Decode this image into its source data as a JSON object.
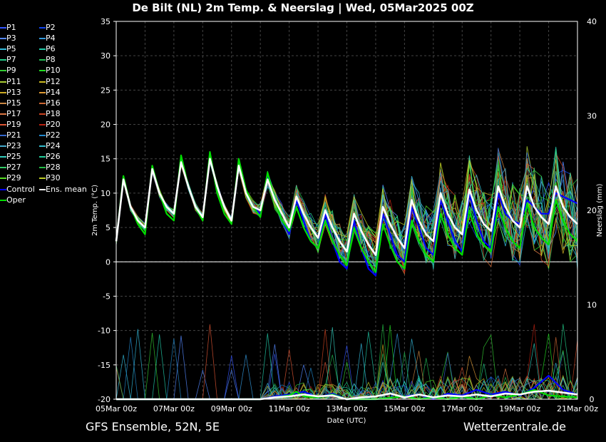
{
  "title": "De Bilt  (NL)  2m Temp. & Neerslag | Wed, 05Mar2025 00Z",
  "footer": {
    "left": "GFS Ensemble, 52N, 5E",
    "right": "Wetterzentrale.de"
  },
  "legend": [
    {
      "label": "P1",
      "color": "#3355ff"
    },
    {
      "label": "P2",
      "color": "#1144ee"
    },
    {
      "label": "P3",
      "color": "#5588ff"
    },
    {
      "label": "P4",
      "color": "#3399dd"
    },
    {
      "label": "P5",
      "color": "#33bbdd"
    },
    {
      "label": "P6",
      "color": "#22ccaa"
    },
    {
      "label": "P7",
      "color": "#22cc88"
    },
    {
      "label": "P8",
      "color": "#22bb55"
    },
    {
      "label": "P9",
      "color": "#33cc33"
    },
    {
      "label": "P10",
      "color": "#22dd22"
    },
    {
      "label": "P11",
      "color": "#aacc33"
    },
    {
      "label": "P12",
      "color": "#ccbb22"
    },
    {
      "label": "P13",
      "color": "#ccaa22"
    },
    {
      "label": "P14",
      "color": "#dd9933"
    },
    {
      "label": "P15",
      "color": "#cc8844"
    },
    {
      "label": "P16",
      "color": "#cc6633"
    },
    {
      "label": "P17",
      "color": "#dd7744"
    },
    {
      "label": "P18",
      "color": "#cc4422"
    },
    {
      "label": "P19",
      "color": "#dd5533"
    },
    {
      "label": "P20",
      "color": "#bb2211"
    },
    {
      "label": "P21",
      "color": "#3366cc"
    },
    {
      "label": "P22",
      "color": "#2288cc"
    },
    {
      "label": "P23",
      "color": "#44aacc"
    },
    {
      "label": "P24",
      "color": "#33bbcc"
    },
    {
      "label": "P25",
      "color": "#33ccbb"
    },
    {
      "label": "P26",
      "color": "#22cc99"
    },
    {
      "label": "P27",
      "color": "#33cc66"
    },
    {
      "label": "P28",
      "color": "#22bb44"
    },
    {
      "label": "P29",
      "color": "#55dd22"
    },
    {
      "label": "P30",
      "color": "#bbcc22"
    },
    {
      "label": "Control",
      "color": "#0000ff"
    },
    {
      "label": "Ens. mean",
      "color": "#ffffff"
    },
    {
      "label": "Oper",
      "color": "#00dd00"
    }
  ],
  "chart_data": {
    "type": "line",
    "x_labels": [
      "05Mar 00z",
      "07Mar 00z",
      "09Mar 00z",
      "11Mar 00z",
      "13Mar 00z",
      "15Mar 00z",
      "17Mar 00z",
      "19Mar 00z",
      "21Mar 00z"
    ],
    "x_range_days": [
      0,
      16
    ],
    "y_left": {
      "label": "2m Temp. (°C)",
      "min": -20,
      "max": 35,
      "ticks": [
        35,
        30,
        25,
        20,
        15,
        10,
        5,
        0,
        -5,
        -10,
        -15,
        -20
      ]
    },
    "y_right": {
      "label": "Neerslag (mm)",
      "min": 0,
      "max": 40,
      "ticks": [
        40,
        30,
        20,
        10,
        0
      ]
    },
    "xlabel": "Date (UTC)",
    "grid": true,
    "series": [
      {
        "name": "Ens. mean",
        "type": "temp",
        "color": "#ffffff",
        "values": [
          [
            0,
            3
          ],
          [
            0.25,
            12
          ],
          [
            0.5,
            8
          ],
          [
            0.75,
            6
          ],
          [
            1,
            5
          ],
          [
            1.25,
            13.5
          ],
          [
            1.5,
            10
          ],
          [
            1.75,
            8
          ],
          [
            2,
            7
          ],
          [
            2.25,
            14.5
          ],
          [
            2.5,
            11
          ],
          [
            2.75,
            8
          ],
          [
            3,
            6.5
          ],
          [
            3.25,
            15
          ],
          [
            3.5,
            11
          ],
          [
            3.75,
            8
          ],
          [
            4,
            6
          ],
          [
            4.25,
            14
          ],
          [
            4.5,
            10
          ],
          [
            4.75,
            8
          ],
          [
            5,
            7.5
          ],
          [
            5.25,
            12
          ],
          [
            5.5,
            9
          ],
          [
            5.75,
            7
          ],
          [
            6,
            5
          ],
          [
            6.25,
            9.5
          ],
          [
            6.5,
            7
          ],
          [
            6.75,
            5
          ],
          [
            7,
            3.5
          ],
          [
            7.25,
            7.5
          ],
          [
            7.5,
            5
          ],
          [
            7.75,
            3
          ],
          [
            8,
            1.5
          ],
          [
            8.25,
            7
          ],
          [
            8.5,
            4.5
          ],
          [
            8.75,
            2.5
          ],
          [
            9,
            1
          ],
          [
            9.25,
            8
          ],
          [
            9.5,
            5.5
          ],
          [
            9.75,
            3.5
          ],
          [
            10,
            2
          ],
          [
            10.25,
            9
          ],
          [
            10.5,
            6
          ],
          [
            10.75,
            4
          ],
          [
            11,
            3
          ],
          [
            11.25,
            10
          ],
          [
            11.5,
            7
          ],
          [
            11.75,
            5
          ],
          [
            12,
            4
          ],
          [
            12.25,
            10.5
          ],
          [
            12.5,
            7.5
          ],
          [
            12.75,
            5.5
          ],
          [
            13,
            4.5
          ],
          [
            13.25,
            11
          ],
          [
            13.5,
            8
          ],
          [
            13.75,
            6
          ],
          [
            14,
            5
          ],
          [
            14.25,
            11
          ],
          [
            14.5,
            8
          ],
          [
            14.75,
            6.5
          ],
          [
            15,
            5.5
          ],
          [
            15.25,
            11
          ],
          [
            15.5,
            8
          ],
          [
            15.75,
            6.5
          ],
          [
            16,
            5.5
          ]
        ]
      },
      {
        "name": "Oper",
        "type": "temp",
        "color": "#00dd00",
        "values": [
          [
            0,
            3
          ],
          [
            0.25,
            12.5
          ],
          [
            0.5,
            8
          ],
          [
            0.75,
            5.5
          ],
          [
            1,
            4
          ],
          [
            1.25,
            14
          ],
          [
            1.5,
            10
          ],
          [
            1.75,
            7
          ],
          [
            2,
            6
          ],
          [
            2.25,
            15.5
          ],
          [
            2.5,
            11
          ],
          [
            2.75,
            8
          ],
          [
            3,
            6
          ],
          [
            3.25,
            16
          ],
          [
            3.5,
            10
          ],
          [
            3.75,
            7
          ],
          [
            4,
            5.5
          ],
          [
            4.25,
            15
          ],
          [
            4.5,
            10.5
          ],
          [
            4.75,
            8
          ],
          [
            5,
            6.5
          ],
          [
            5.25,
            13
          ],
          [
            5.5,
            9
          ],
          [
            5.75,
            6
          ],
          [
            6,
            4.5
          ],
          [
            6.25,
            8
          ],
          [
            6.5,
            5
          ],
          [
            6.75,
            3
          ],
          [
            7,
            2
          ],
          [
            7.25,
            6
          ],
          [
            7.5,
            3
          ],
          [
            7.75,
            1
          ],
          [
            8,
            -0.5
          ],
          [
            8.25,
            5
          ],
          [
            8.5,
            2
          ],
          [
            8.75,
            0
          ],
          [
            9,
            -1.5
          ],
          [
            9.25,
            5.5
          ],
          [
            9.5,
            2.5
          ],
          [
            9.75,
            0
          ],
          [
            10,
            -1
          ],
          [
            10.25,
            6
          ],
          [
            10.5,
            3
          ],
          [
            10.75,
            1
          ],
          [
            11,
            0
          ],
          [
            11.25,
            7
          ],
          [
            11.5,
            4
          ],
          [
            11.75,
            2
          ],
          [
            12,
            1
          ],
          [
            12.25,
            7.5
          ],
          [
            12.5,
            4
          ],
          [
            12.75,
            2.5
          ],
          [
            13,
            1.5
          ],
          [
            13.25,
            8
          ],
          [
            13.5,
            5
          ],
          [
            13.75,
            3
          ],
          [
            14,
            2
          ],
          [
            14.25,
            8.5
          ],
          [
            14.5,
            5
          ],
          [
            14.75,
            3.5
          ],
          [
            15,
            2.5
          ],
          [
            15.25,
            9
          ],
          [
            15.5,
            6
          ],
          [
            15.75,
            4
          ],
          [
            16,
            3
          ]
        ]
      },
      {
        "name": "Control",
        "type": "temp",
        "color": "#0000ff",
        "values": [
          [
            0,
            3
          ],
          [
            0.25,
            12
          ],
          [
            0.5,
            8
          ],
          [
            0.75,
            6
          ],
          [
            1,
            5
          ],
          [
            1.25,
            13.5
          ],
          [
            1.5,
            10
          ],
          [
            1.75,
            8
          ],
          [
            2,
            7
          ],
          [
            2.25,
            14.5
          ],
          [
            2.5,
            11
          ],
          [
            2.75,
            8
          ],
          [
            3,
            6.5
          ],
          [
            3.25,
            15
          ],
          [
            3.5,
            11
          ],
          [
            3.75,
            8
          ],
          [
            4,
            6
          ],
          [
            4.25,
            14
          ],
          [
            4.5,
            10
          ],
          [
            4.75,
            8
          ],
          [
            5,
            7
          ],
          [
            5.25,
            12.5
          ],
          [
            5.5,
            9
          ],
          [
            5.75,
            6
          ],
          [
            6,
            4
          ],
          [
            6.25,
            9
          ],
          [
            6.5,
            6
          ],
          [
            6.75,
            3
          ],
          [
            7,
            2
          ],
          [
            7.25,
            7
          ],
          [
            7.5,
            3
          ],
          [
            7.75,
            0
          ],
          [
            8,
            -1
          ],
          [
            8.25,
            6
          ],
          [
            8.5,
            2
          ],
          [
            8.75,
            -1
          ],
          [
            9,
            -2
          ],
          [
            9.25,
            7
          ],
          [
            9.5,
            4
          ],
          [
            9.75,
            1
          ],
          [
            10,
            0
          ],
          [
            10.25,
            8
          ],
          [
            10.5,
            5
          ],
          [
            10.75,
            2
          ],
          [
            11,
            1
          ],
          [
            11.25,
            9
          ],
          [
            11.5,
            6
          ],
          [
            11.75,
            3
          ],
          [
            12,
            1.5
          ],
          [
            12.25,
            10
          ],
          [
            12.5,
            6
          ],
          [
            12.75,
            3
          ],
          [
            13,
            2
          ],
          [
            13.25,
            10
          ],
          [
            13.5,
            7
          ],
          [
            13.75,
            6
          ],
          [
            14,
            5.5
          ],
          [
            14.25,
            9
          ],
          [
            14.5,
            8
          ],
          [
            14.75,
            7
          ],
          [
            15,
            7
          ],
          [
            15.25,
            10
          ],
          [
            15.5,
            9.5
          ],
          [
            15.75,
            9
          ],
          [
            16,
            8.5
          ]
        ]
      },
      {
        "name": "Oper",
        "type": "precip",
        "color": "#00dd00",
        "values": [
          [
            0,
            0
          ],
          [
            3,
            0
          ],
          [
            4,
            0
          ],
          [
            5,
            0
          ],
          [
            5.5,
            0.2
          ],
          [
            6,
            0.4
          ],
          [
            6.25,
            0.8
          ],
          [
            6.5,
            0.3
          ],
          [
            7,
            0.2
          ],
          [
            7.5,
            0.5
          ],
          [
            8,
            0
          ],
          [
            9,
            0
          ],
          [
            10,
            0.3
          ],
          [
            10.5,
            0
          ],
          [
            11,
            0.2
          ],
          [
            11.5,
            0
          ],
          [
            12,
            0.3
          ],
          [
            12.5,
            0
          ],
          [
            13,
            0.4
          ],
          [
            13.5,
            0.2
          ],
          [
            14,
            0.5
          ],
          [
            14.5,
            1.0
          ],
          [
            15,
            0.4
          ],
          [
            15.5,
            0.3
          ],
          [
            16,
            0.2
          ]
        ]
      },
      {
        "name": "Ens. mean",
        "type": "precip",
        "color": "#ffffff",
        "values": [
          [
            0,
            0
          ],
          [
            5,
            0
          ],
          [
            5.5,
            0.2
          ],
          [
            6,
            0.3
          ],
          [
            6.5,
            0.5
          ],
          [
            7,
            0.3
          ],
          [
            7.5,
            0.4
          ],
          [
            8,
            0
          ],
          [
            8.5,
            0.2
          ],
          [
            9,
            0.3
          ],
          [
            9.5,
            0.6
          ],
          [
            10,
            0.2
          ],
          [
            10.5,
            0.5
          ],
          [
            11,
            0.2
          ],
          [
            11.5,
            0.4
          ],
          [
            12,
            0.3
          ],
          [
            12.5,
            0.5
          ],
          [
            13,
            0.3
          ],
          [
            13.5,
            0.6
          ],
          [
            14,
            0.5
          ],
          [
            14.5,
            0.8
          ],
          [
            15,
            0.9
          ],
          [
            15.5,
            0.7
          ],
          [
            16,
            0.5
          ]
        ]
      },
      {
        "name": "Control",
        "type": "precip",
        "color": "#0000ff",
        "values": [
          [
            0,
            0
          ],
          [
            5,
            0
          ],
          [
            5.5,
            0.3
          ],
          [
            6,
            0.5
          ],
          [
            6.5,
            0.8
          ],
          [
            7,
            0.2
          ],
          [
            7.5,
            0.6
          ],
          [
            8,
            0
          ],
          [
            9,
            0
          ],
          [
            10,
            0.3
          ],
          [
            10.5,
            0.5
          ],
          [
            11,
            0
          ],
          [
            11.5,
            0.6
          ],
          [
            12,
            0.4
          ],
          [
            12.5,
            1.0
          ],
          [
            13,
            0.5
          ],
          [
            13.5,
            0.8
          ],
          [
            14,
            0.4
          ],
          [
            14.5,
            1.2
          ],
          [
            15,
            2.5
          ],
          [
            15.5,
            1.0
          ],
          [
            16,
            0.5
          ]
        ]
      }
    ]
  }
}
